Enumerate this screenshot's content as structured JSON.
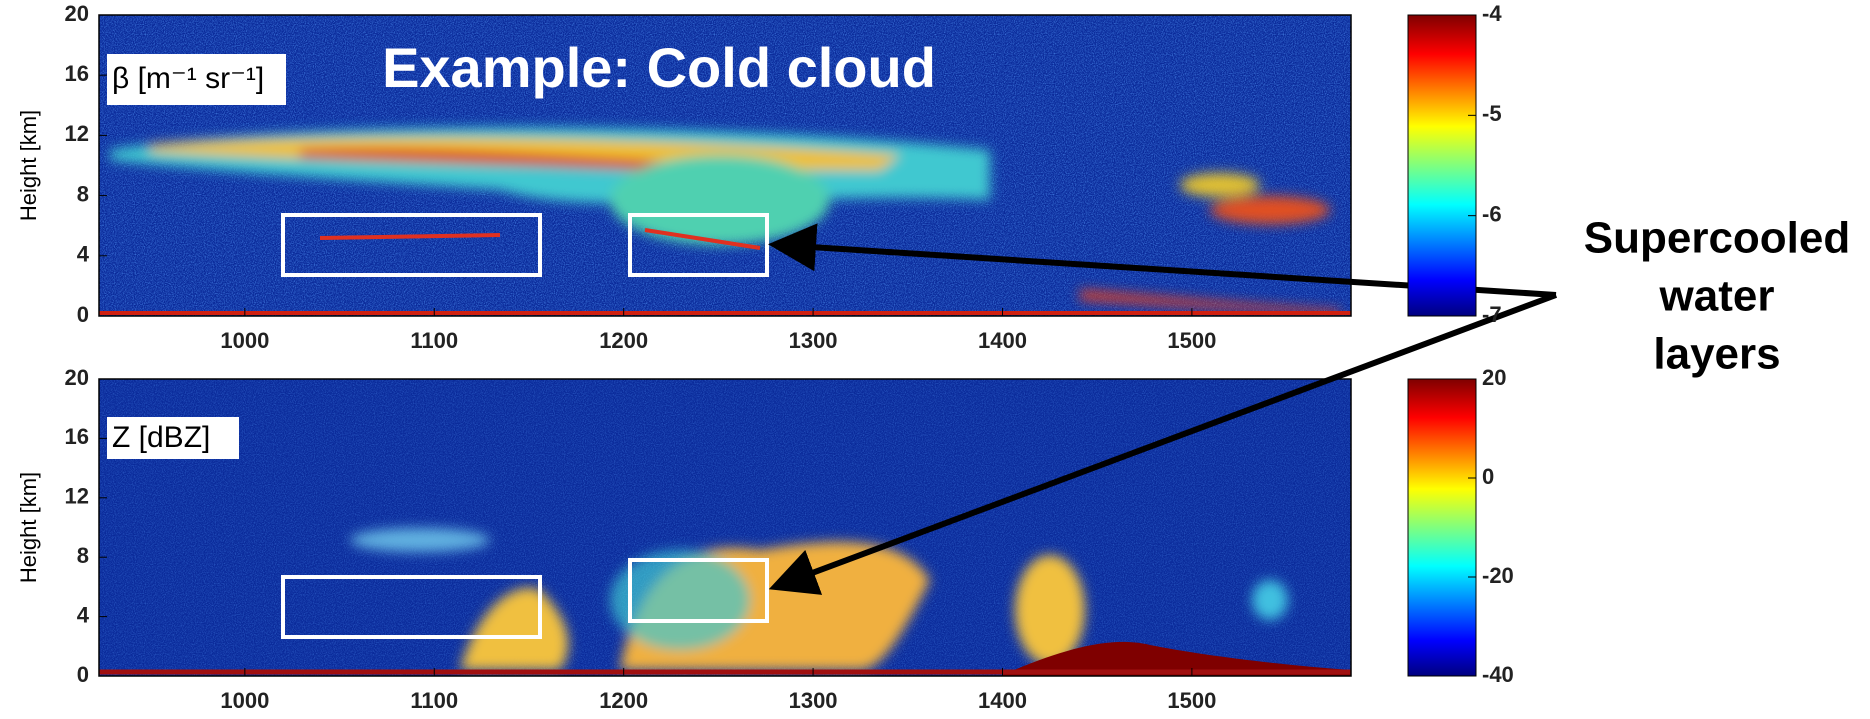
{
  "annotation": [
    "Supercooled",
    "water",
    "layers"
  ],
  "chart_data": [
    {
      "type": "heatmap",
      "title": "Example: Cold cloud",
      "label": "β [m⁻¹ sr⁻¹]",
      "ylabel": "Height [km]",
      "xlim": [
        923,
        1584
      ],
      "xticks": [
        1000,
        1100,
        1200,
        1300,
        1400,
        1500
      ],
      "ylim": [
        0,
        20
      ],
      "yticks": [
        0,
        4,
        8,
        12,
        16,
        20
      ],
      "clim": [
        -7,
        -4
      ],
      "cticks": [
        -4,
        -5,
        -6,
        -7
      ]
    },
    {
      "type": "heatmap",
      "label": "Z [dBZ]",
      "ylabel": "Height [km]",
      "xlim": [
        923,
        1584
      ],
      "xticks": [
        1000,
        1100,
        1200,
        1300,
        1400,
        1500
      ],
      "ylim": [
        0,
        20
      ],
      "yticks": [
        0,
        4,
        8,
        12,
        16,
        20
      ],
      "clim": [
        -40,
        20
      ],
      "cticks": [
        20,
        0,
        -20,
        -40
      ]
    }
  ]
}
